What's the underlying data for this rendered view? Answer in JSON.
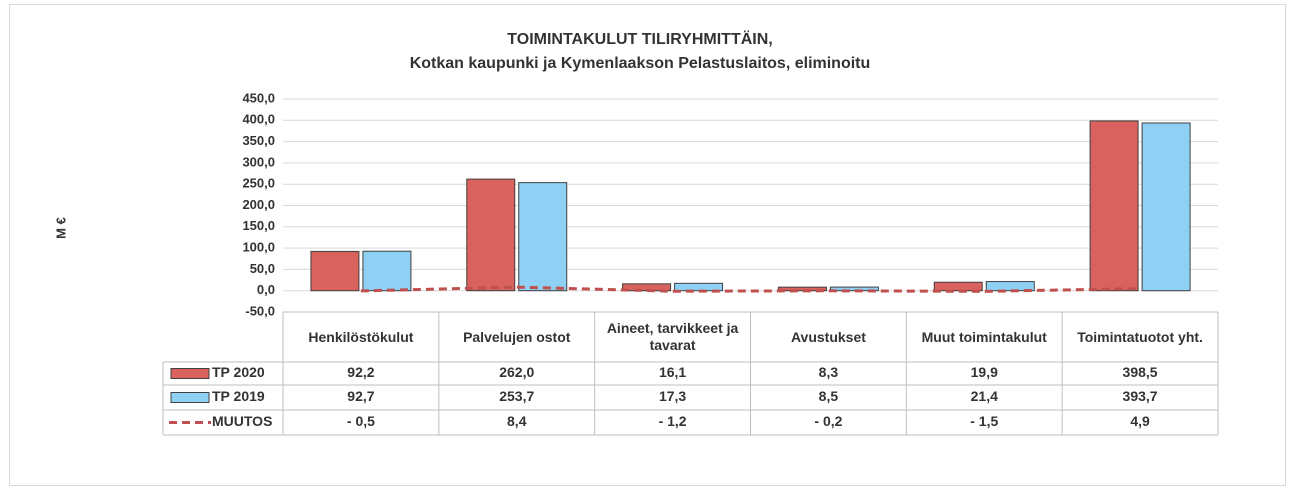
{
  "chart_data": {
    "type": "bar",
    "title": "TOIMINTAKULUT TILIRYHMITTÄIN,",
    "subtitle": "Kotkan kaupunki ja Kymenlaakson Pelastuslaitos, eliminoitu",
    "y_label": "M €",
    "categories": [
      "Henkilöstökulut",
      "Palvelujen ostot",
      "Aineet, tarvikkeet ja tavarat",
      "Avustukset",
      "Muut toimintakulut",
      "Toimintatuotot yht."
    ],
    "series": [
      {
        "name": "TP 2020",
        "type": "bar",
        "color": "#d9625e",
        "values": [
          92.2,
          262.0,
          16.1,
          8.3,
          19.9,
          398.5
        ],
        "value_labels": [
          "92,2",
          "262,0",
          "16,1",
          "8,3",
          "19,9",
          "398,5"
        ]
      },
      {
        "name": "TP 2019",
        "type": "bar",
        "color": "#8fd0f5",
        "values": [
          92.7,
          253.7,
          17.3,
          8.5,
          21.4,
          393.7
        ],
        "value_labels": [
          "92,7",
          "253,7",
          "17,3",
          "8,5",
          "21,4",
          "393,7"
        ]
      },
      {
        "name": "MUUTOS",
        "type": "line",
        "color": "#c0504d",
        "values": [
          -0.5,
          8.4,
          -1.2,
          -0.2,
          -1.5,
          4.9
        ],
        "value_labels": [
          "- 0,5",
          "8,4",
          "- 1,2",
          "- 0,2",
          "- 1,5",
          "4,9"
        ]
      }
    ],
    "ylim": [
      -50,
      450
    ],
    "yticks": [
      {
        "value": -50,
        "label": "-50,0"
      },
      {
        "value": 0,
        "label": "0,0"
      },
      {
        "value": 50,
        "label": "50,0"
      },
      {
        "value": 100,
        "label": "100,0"
      },
      {
        "value": 150,
        "label": "150,0"
      },
      {
        "value": 200,
        "label": "200,0"
      },
      {
        "value": 250,
        "label": "250,0"
      },
      {
        "value": 300,
        "label": "300,0"
      },
      {
        "value": 350,
        "label": "350,0"
      },
      {
        "value": 400,
        "label": "400,0"
      },
      {
        "value": 450,
        "label": "450,0"
      }
    ],
    "grid": true
  }
}
